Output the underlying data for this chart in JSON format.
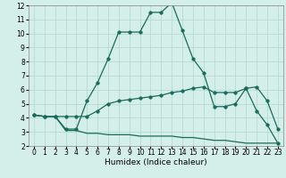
{
  "title": "",
  "xlabel": "Humidex (Indice chaleur)",
  "x": [
    0,
    1,
    2,
    3,
    4,
    5,
    6,
    7,
    8,
    9,
    10,
    11,
    12,
    13,
    14,
    15,
    16,
    17,
    18,
    19,
    20,
    21,
    22,
    23
  ],
  "curve1": [
    4.2,
    4.1,
    4.1,
    3.2,
    3.2,
    5.2,
    6.5,
    8.2,
    10.1,
    10.1,
    10.1,
    11.5,
    11.5,
    12.2,
    10.2,
    8.2,
    7.2,
    4.8,
    4.8,
    5.0,
    6.1,
    6.2,
    5.2,
    3.2
  ],
  "curve2": [
    4.2,
    4.1,
    4.1,
    4.1,
    4.1,
    4.1,
    4.5,
    5.0,
    5.2,
    5.3,
    5.4,
    5.5,
    5.6,
    5.8,
    5.9,
    6.1,
    6.2,
    5.8,
    5.8,
    5.8,
    6.1,
    4.5,
    3.5,
    2.2
  ],
  "curve3": [
    4.2,
    4.1,
    4.1,
    3.1,
    3.1,
    2.9,
    2.9,
    2.8,
    2.8,
    2.8,
    2.7,
    2.7,
    2.7,
    2.7,
    2.6,
    2.6,
    2.5,
    2.4,
    2.4,
    2.3,
    2.2,
    2.2,
    2.2,
    2.2
  ],
  "line_color": "#1a6b5a",
  "bg_color": "#d4eeea",
  "grid_color": "#b0d8d0",
  "ylim": [
    2,
    12
  ],
  "xlim": [
    -0.5,
    23.5
  ],
  "yticks": [
    2,
    3,
    4,
    5,
    6,
    7,
    8,
    9,
    10,
    11,
    12
  ],
  "xticks": [
    0,
    1,
    2,
    3,
    4,
    5,
    6,
    7,
    8,
    9,
    10,
    11,
    12,
    13,
    14,
    15,
    16,
    17,
    18,
    19,
    20,
    21,
    22,
    23
  ],
  "tick_fontsize": 5.5,
  "xlabel_fontsize": 6.5,
  "marker_size": 2.5,
  "line_width": 0.9
}
